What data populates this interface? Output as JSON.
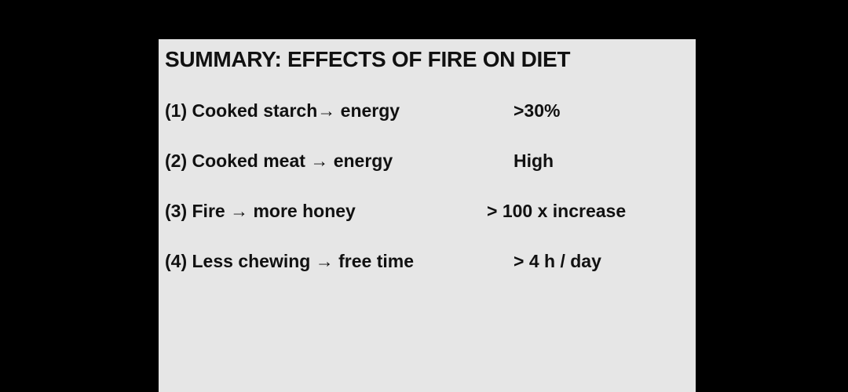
{
  "slide": {
    "background": "#e6e6e6",
    "title": "SUMMARY: EFFECTS OF FIRE ON DIET",
    "items": [
      {
        "label": "(1)  Cooked starch→ energy",
        "value": ">30%"
      },
      {
        "label": "(2)  Cooked meat  → energy",
        "value": "High"
      },
      {
        "label": "(3) Fire → more honey",
        "value": "> 100 x increase"
      },
      {
        "label": "(4) Less chewing  → free time",
        "value": "> 4 h / day"
      }
    ]
  }
}
